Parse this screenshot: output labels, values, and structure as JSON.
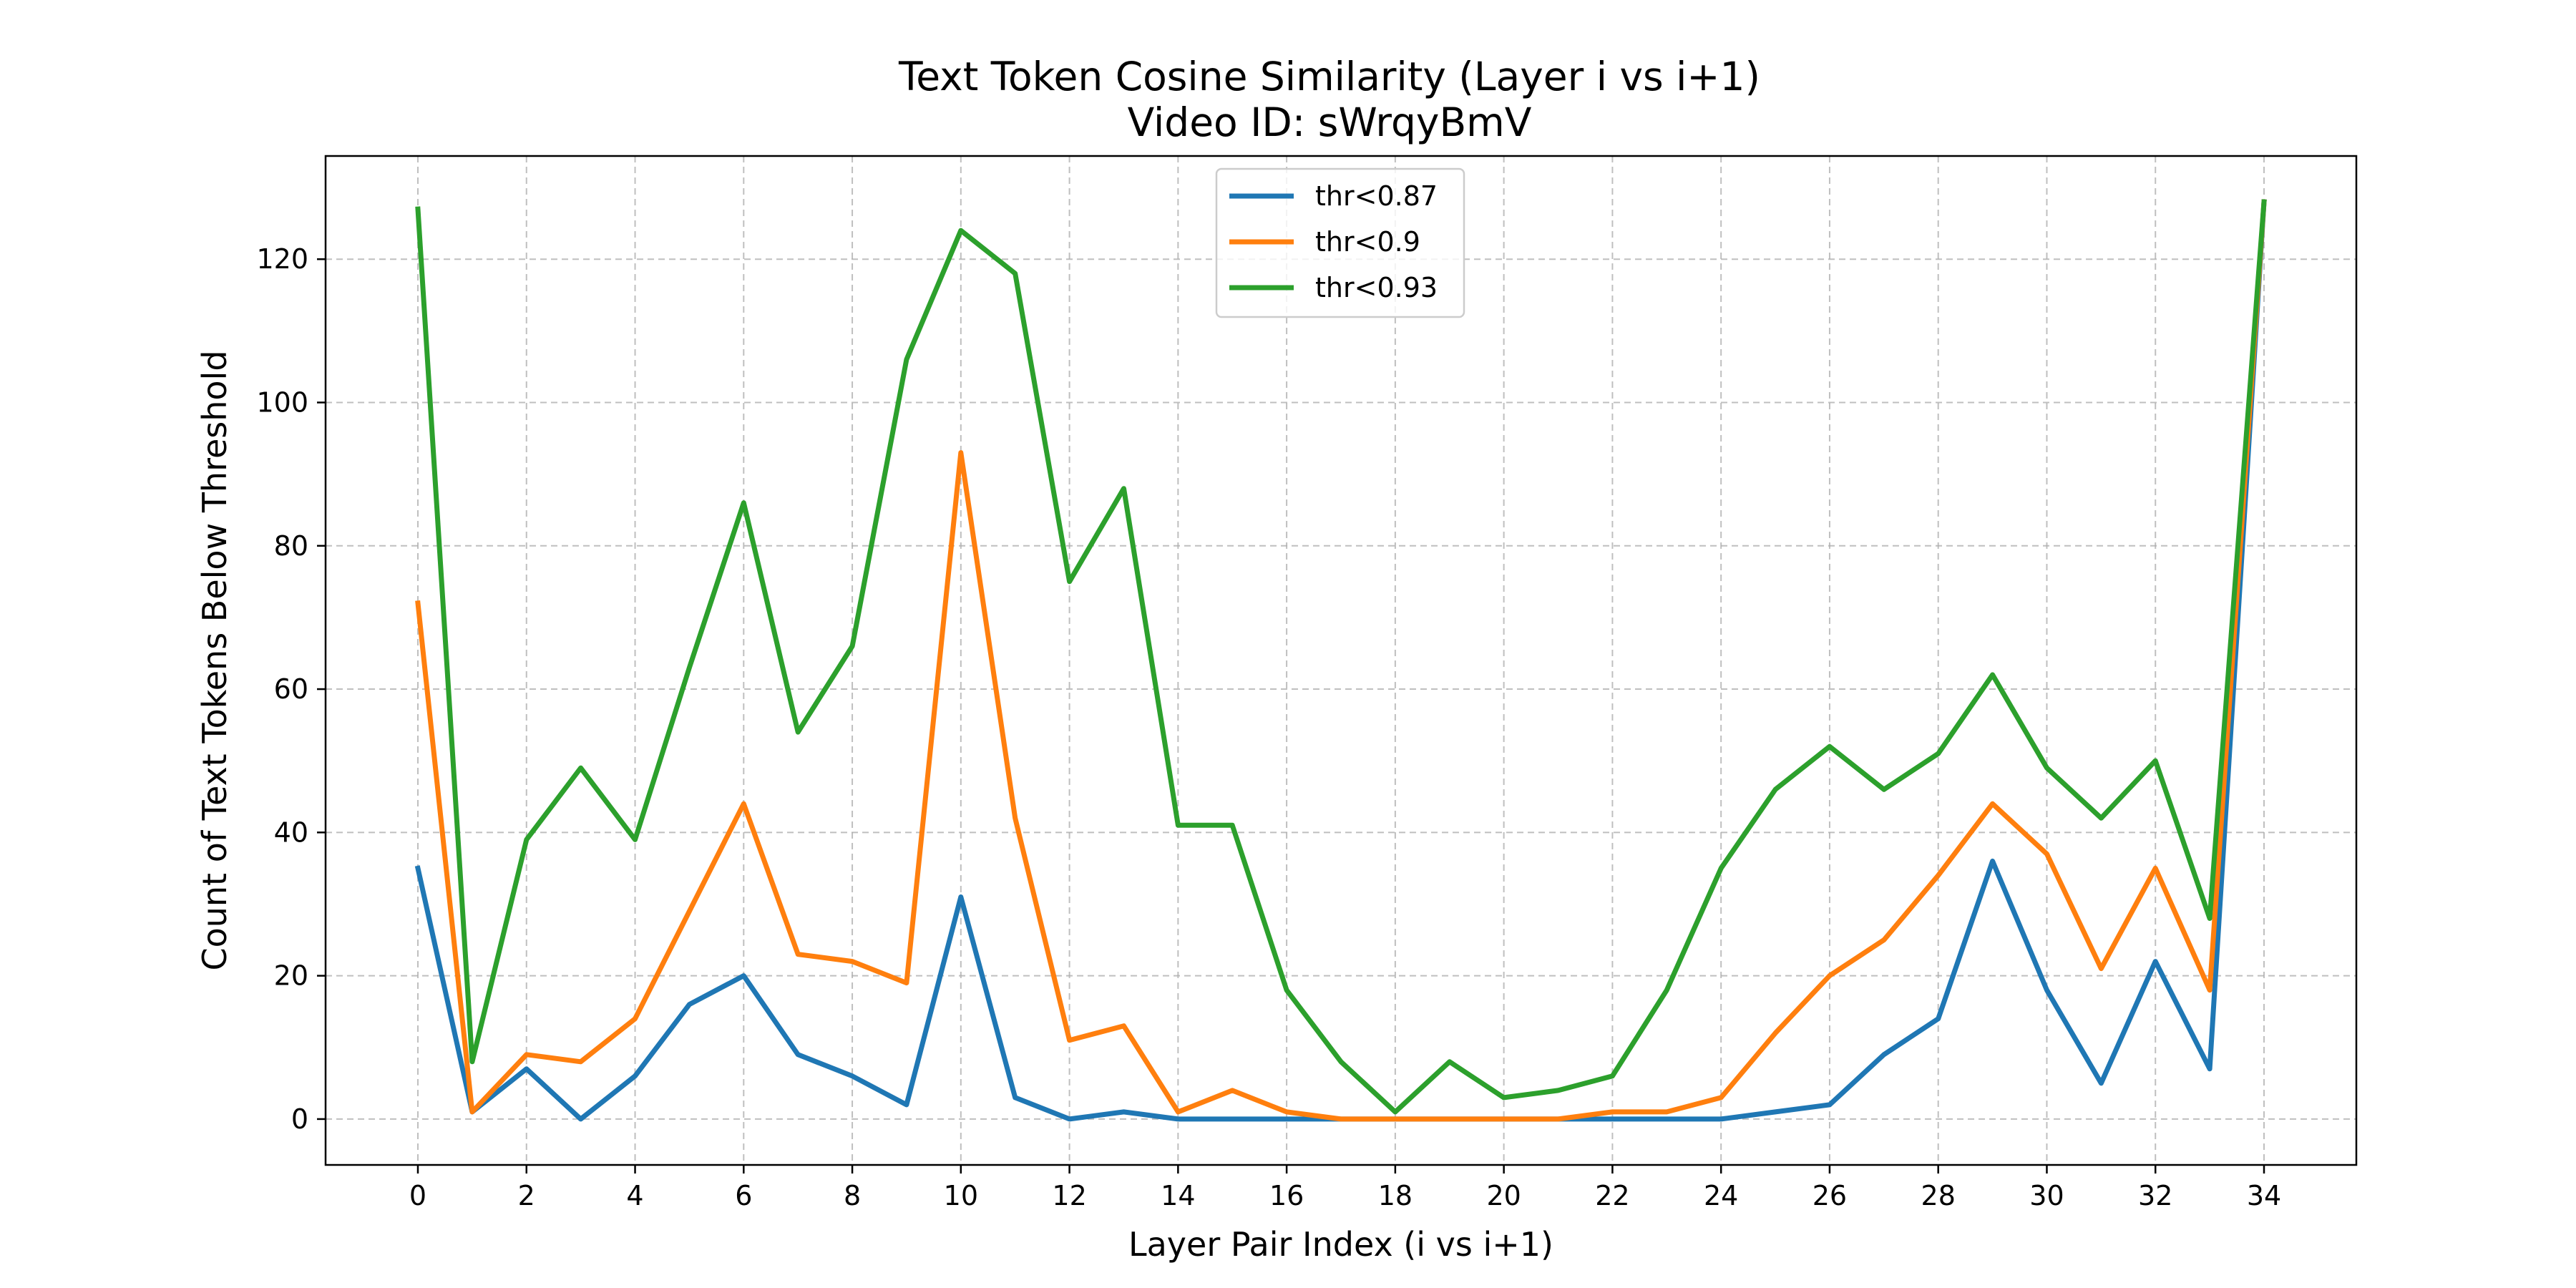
{
  "chart_data": {
    "type": "line",
    "title": "Text Token Cosine Similarity (Layer i vs i+1)",
    "subtitle": "Video ID: sWrqyBmV",
    "xlabel": "Layer Pair Index (i vs i+1)",
    "ylabel": "Count of Text Tokens Below Threshold",
    "x": [
      0,
      1,
      2,
      3,
      4,
      5,
      6,
      7,
      8,
      9,
      10,
      11,
      12,
      13,
      14,
      15,
      16,
      17,
      18,
      19,
      20,
      21,
      22,
      23,
      24,
      25,
      26,
      27,
      28,
      29,
      30,
      31,
      32,
      33,
      34
    ],
    "xticks": [
      0,
      2,
      4,
      6,
      8,
      10,
      12,
      14,
      16,
      18,
      20,
      22,
      24,
      26,
      28,
      30,
      32,
      34
    ],
    "yticks": [
      0,
      20,
      40,
      60,
      80,
      100,
      120
    ],
    "xlim": [
      -1.7,
      35.7
    ],
    "ylim": [
      -6.4,
      134.4
    ],
    "grid": true,
    "legend_position": "top-center",
    "series": [
      {
        "name": "thr<0.87",
        "color": "#1f77b4",
        "values": [
          35,
          1,
          7,
          0,
          6,
          16,
          20,
          9,
          6,
          2,
          31,
          3,
          0,
          1,
          0,
          0,
          0,
          0,
          0,
          0,
          0,
          0,
          0,
          0,
          0,
          1,
          2,
          9,
          14,
          36,
          18,
          5,
          22,
          7,
          128
        ]
      },
      {
        "name": "thr<0.9",
        "color": "#ff7f0e",
        "values": [
          72,
          1,
          9,
          8,
          14,
          29,
          44,
          23,
          22,
          19,
          93,
          42,
          11,
          13,
          1,
          4,
          1,
          0,
          0,
          0,
          0,
          0,
          1,
          1,
          3,
          12,
          20,
          25,
          34,
          44,
          37,
          21,
          35,
          18,
          128
        ]
      },
      {
        "name": "thr<0.93",
        "color": "#2ca02c",
        "values": [
          127,
          8,
          39,
          49,
          39,
          63,
          86,
          54,
          66,
          106,
          124,
          118,
          75,
          88,
          41,
          41,
          18,
          8,
          1,
          8,
          3,
          4,
          6,
          18,
          35,
          46,
          52,
          46,
          51,
          62,
          49,
          42,
          50,
          28,
          128
        ]
      }
    ]
  }
}
